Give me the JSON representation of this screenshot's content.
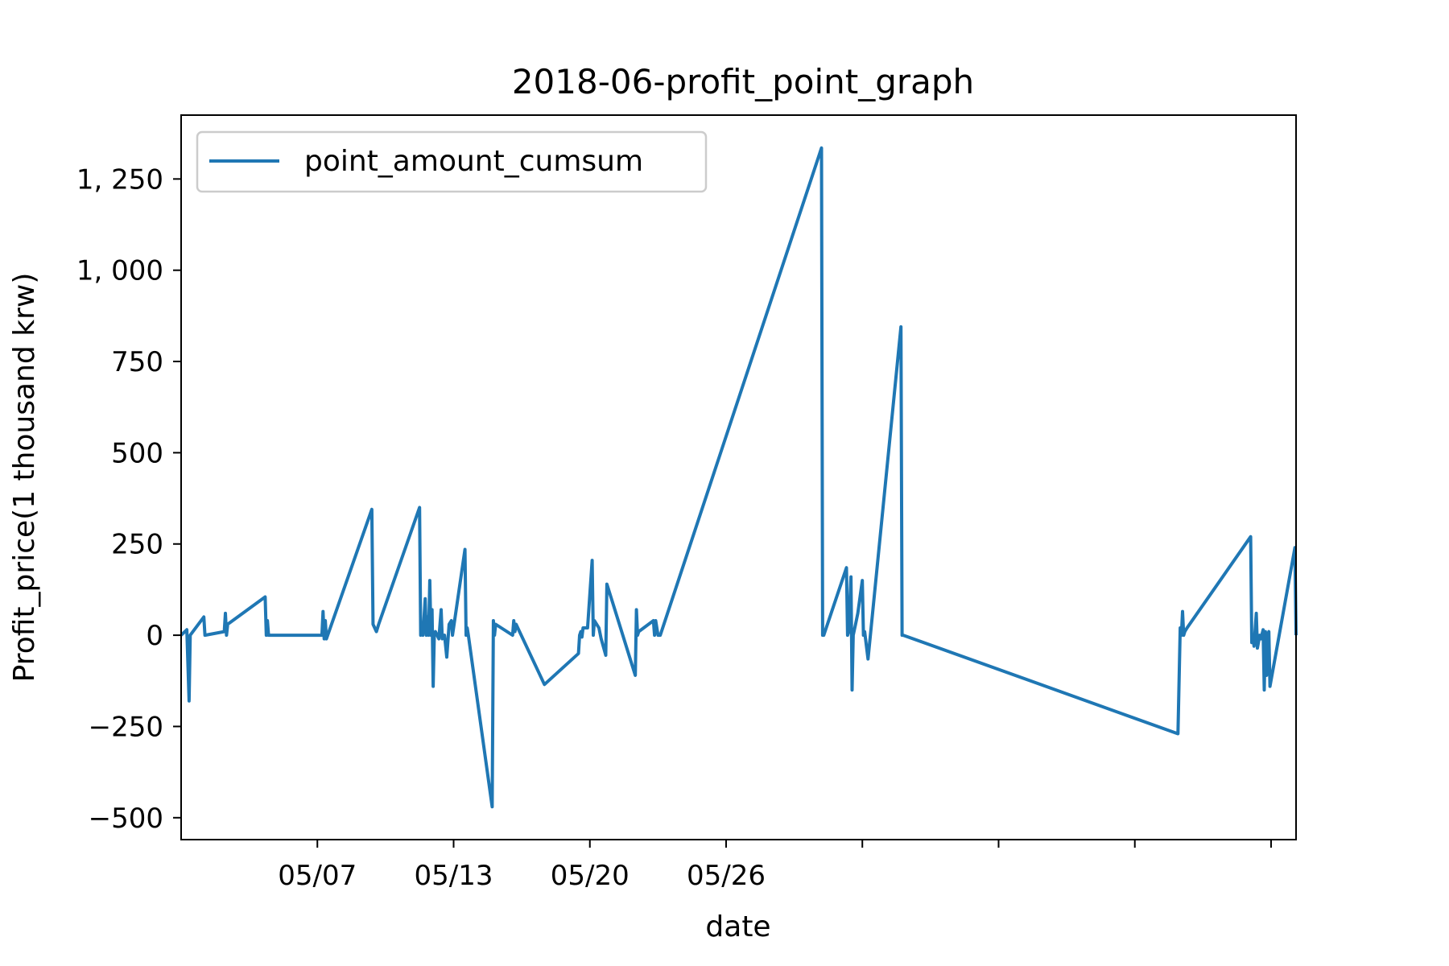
{
  "chart_data": {
    "type": "line",
    "title": "2018-06-profit_point_graph",
    "xlabel": "date",
    "ylabel": "Profit_price(1 thousand krw)",
    "x_ticks": [
      {
        "x": 6,
        "label": "05/07"
      },
      {
        "x": 12,
        "label": "05/13"
      },
      {
        "x": 18,
        "label": "05/20"
      },
      {
        "x": 24,
        "label": "05/26"
      },
      {
        "x": 30,
        "label": ""
      },
      {
        "x": 36,
        "label": ""
      },
      {
        "x": 42,
        "label": ""
      },
      {
        "x": 48,
        "label": ""
      }
    ],
    "xlim": [
      0,
      49.1
    ],
    "ylim": [
      -560,
      1425
    ],
    "y_ticks": [
      {
        "value": -500,
        "label": "−500"
      },
      {
        "value": -250,
        "label": "−250"
      },
      {
        "value": 0,
        "label": "0"
      },
      {
        "value": 250,
        "label": "250"
      },
      {
        "value": 500,
        "label": "500"
      },
      {
        "value": 750,
        "label": "750"
      },
      {
        "value": 1000,
        "label": "1, 000"
      },
      {
        "value": 1250,
        "label": "1, 250"
      }
    ],
    "legend": {
      "position": "top-left"
    },
    "grid": false,
    "series": [
      {
        "name": "point_amount_cumsum",
        "color": "#1f77b4",
        "points": [
          [
            0,
            0
          ],
          [
            0.25,
            15
          ],
          [
            0.35,
            -180
          ],
          [
            0.4,
            0
          ],
          [
            1,
            50
          ],
          [
            1.05,
            0
          ],
          [
            1.9,
            10
          ],
          [
            1.95,
            60
          ],
          [
            2.0,
            0
          ],
          [
            2.05,
            30
          ],
          [
            3.7,
            105
          ],
          [
            3.75,
            0
          ],
          [
            3.8,
            40
          ],
          [
            3.85,
            0
          ],
          [
            6.2,
            0
          ],
          [
            6.25,
            65
          ],
          [
            6.3,
            -10
          ],
          [
            6.35,
            40
          ],
          [
            6.4,
            -10
          ],
          [
            8.4,
            345
          ],
          [
            8.45,
            30
          ],
          [
            8.6,
            10
          ],
          [
            8.7,
            30
          ],
          [
            10.5,
            350
          ],
          [
            10.55,
            0
          ],
          [
            10.6,
            30
          ],
          [
            10.65,
            0
          ],
          [
            10.75,
            100
          ],
          [
            10.8,
            0
          ],
          [
            10.85,
            50
          ],
          [
            10.9,
            0
          ],
          [
            10.95,
            150
          ],
          [
            11.0,
            0
          ],
          [
            11.05,
            70
          ],
          [
            11.1,
            -140
          ],
          [
            11.15,
            0
          ],
          [
            11.2,
            10
          ],
          [
            11.35,
            -10
          ],
          [
            11.45,
            70
          ],
          [
            11.5,
            -10
          ],
          [
            11.6,
            0
          ],
          [
            11.7,
            -60
          ],
          [
            11.8,
            30
          ],
          [
            11.9,
            40
          ],
          [
            11.95,
            0
          ],
          [
            12.5,
            235
          ],
          [
            12.55,
            0
          ],
          [
            12.6,
            20
          ],
          [
            12.65,
            0
          ],
          [
            13.7,
            -470
          ],
          [
            13.75,
            40
          ],
          [
            13.8,
            0
          ],
          [
            13.85,
            30
          ],
          [
            14.6,
            0
          ],
          [
            14.65,
            40
          ],
          [
            14.7,
            10
          ],
          [
            14.75,
            30
          ],
          [
            16.0,
            -135
          ],
          [
            17.5,
            -50
          ],
          [
            17.55,
            0
          ],
          [
            17.6,
            10
          ],
          [
            17.65,
            -5
          ],
          [
            17.7,
            20
          ],
          [
            17.9,
            20
          ],
          [
            18.1,
            205
          ],
          [
            18.15,
            0
          ],
          [
            18.2,
            40
          ],
          [
            18.4,
            20
          ],
          [
            18.5,
            -10
          ],
          [
            18.7,
            -55
          ],
          [
            18.75,
            140
          ],
          [
            20.0,
            -110
          ],
          [
            20.05,
            70
          ],
          [
            20.1,
            0
          ],
          [
            20.15,
            10
          ],
          [
            20.8,
            40
          ],
          [
            20.85,
            0
          ],
          [
            20.9,
            40
          ],
          [
            21.0,
            0
          ],
          [
            21.1,
            0
          ],
          [
            28.2,
            1335
          ],
          [
            28.25,
            0
          ],
          [
            28.3,
            0
          ],
          [
            29.3,
            185
          ],
          [
            29.35,
            0
          ],
          [
            29.4,
            10
          ],
          [
            29.5,
            160
          ],
          [
            29.55,
            -150
          ],
          [
            29.6,
            0
          ],
          [
            29.7,
            30
          ],
          [
            29.8,
            60
          ],
          [
            30.0,
            150
          ],
          [
            30.05,
            0
          ],
          [
            30.1,
            10
          ],
          [
            30.25,
            -65
          ],
          [
            31.7,
            845
          ],
          [
            31.75,
            0
          ],
          [
            31.8,
            0
          ],
          [
            43.9,
            -270
          ],
          [
            44.0,
            20
          ],
          [
            44.05,
            0
          ],
          [
            44.1,
            65
          ],
          [
            44.15,
            0
          ],
          [
            44.2,
            10
          ],
          [
            44.3,
            20
          ],
          [
            47.1,
            270
          ],
          [
            47.15,
            -20
          ],
          [
            47.2,
            0
          ],
          [
            47.25,
            -30
          ],
          [
            47.35,
            60
          ],
          [
            47.4,
            -35
          ],
          [
            47.5,
            0
          ],
          [
            47.55,
            -10
          ],
          [
            47.65,
            15
          ],
          [
            47.7,
            -150
          ],
          [
            47.75,
            10
          ],
          [
            47.8,
            -110
          ],
          [
            47.85,
            0
          ],
          [
            47.9,
            10
          ],
          [
            47.95,
            -140
          ],
          [
            49.05,
            240
          ],
          [
            49.1,
            0
          ]
        ]
      }
    ]
  }
}
